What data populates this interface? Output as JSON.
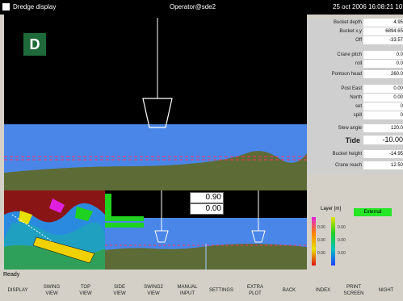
{
  "titlebar": {
    "app": "Dredge display",
    "operator": "Operator@sde2",
    "datetime": "25 oct 2006  16:08:21  10:"
  },
  "badge": "D",
  "panel": {
    "rows": [
      {
        "label": "Bucket depth",
        "value": "4.95"
      },
      {
        "label": "Bucket x,y",
        "value": "6894.65"
      },
      {
        "label": "Off",
        "value": "-33.57"
      },
      {
        "label": "Crane pitch",
        "value": "0.0"
      },
      {
        "label": "roll",
        "value": "0.0"
      },
      {
        "label": "Pontoon head",
        "value": "260.0"
      },
      {
        "label": "Post East",
        "value": "0.00"
      },
      {
        "label": "North",
        "value": "0.00"
      },
      {
        "label": "set",
        "value": "0"
      },
      {
        "label": "spill",
        "value": "0"
      },
      {
        "label": "Slew angle",
        "value": "120.0"
      },
      {
        "label": "Tide",
        "value": "-10.00"
      },
      {
        "label": "Bucket height",
        "value": "-14.95"
      },
      {
        "label": "Crane reach",
        "value": "12.50"
      }
    ]
  },
  "profile": {
    "value1": "0.90",
    "value2": "0.00"
  },
  "legend": {
    "title": "Layer [m]",
    "external": "External",
    "ticks_left": [
      "0.00",
      "0.00",
      "0.00"
    ],
    "ticks_right": [
      "0.00",
      "0.00",
      "0.00"
    ],
    "colors": [
      "#e020e0",
      "#ff8000",
      "#e8e000",
      "#00c0c0",
      "#2040ff",
      "#e01010"
    ]
  },
  "status": "Ready",
  "buttons": [
    "DISPLAY",
    "SWING\nVIEW",
    "TOP\nVIEW",
    "SIDE\nVIEW",
    "SWING2\nVIEW",
    "MANUAL\nINPUT",
    "SETTINGS",
    "EXTRA\nPLOT",
    "BACK",
    "INDEX",
    "PRINT\nSCREEN",
    "NIGHT"
  ]
}
